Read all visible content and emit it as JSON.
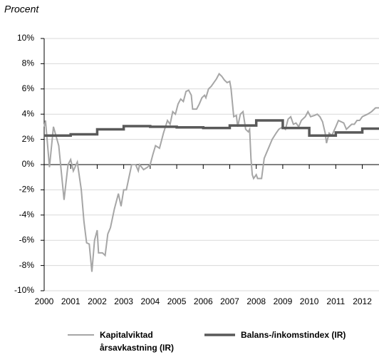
{
  "chart_data": {
    "type": "line",
    "y_axis_label": "Procent",
    "xlim": [
      2000,
      2012.63
    ],
    "ylim": [
      -10,
      10
    ],
    "xticks": [
      2000,
      2001,
      2002,
      2003,
      2004,
      2005,
      2006,
      2007,
      2008,
      2009,
      2010,
      2011,
      2012
    ],
    "yticks": [
      {
        "value": 10,
        "label": "10%"
      },
      {
        "value": 8,
        "label": "8%"
      },
      {
        "value": 6,
        "label": "6%"
      },
      {
        "value": 4,
        "label": "4%"
      },
      {
        "value": 2,
        "label": "2%"
      },
      {
        "value": 0,
        "label": "0%"
      },
      {
        "value": -2,
        "label": "-2%"
      },
      {
        "value": -4,
        "label": "-4%"
      },
      {
        "value": -6,
        "label": "-6%"
      },
      {
        "value": -8,
        "label": "-8%"
      },
      {
        "value": -10,
        "label": "-10%"
      }
    ],
    "grid": true,
    "series": [
      {
        "name": "Kapitalviktad årsavkastning (IR)",
        "color": "#a6a6a6",
        "x": [
          2000,
          2000.05,
          2000.2,
          2000.35,
          2000.55,
          2000.75,
          2000.9,
          2001,
          2001.1,
          2001.25,
          2001.4,
          2001.5,
          2001.6,
          2001.7,
          2001.8,
          2001.9,
          2002,
          2002.05,
          2002.2,
          2002.3,
          2002.4,
          2002.5,
          2002.65,
          2002.8,
          2002.9,
          2003,
          2003.1,
          2003.2,
          2003.3,
          2003.45,
          2003.55,
          2003.6,
          2003.75,
          2003.9,
          2004,
          2004.1,
          2004.2,
          2004.35,
          2004.5,
          2004.65,
          2004.75,
          2004.85,
          2004.95,
          2005.05,
          2005.15,
          2005.25,
          2005.35,
          2005.45,
          2005.55,
          2005.6,
          2005.75,
          2005.85,
          2005.95,
          2006.05,
          2006.1,
          2006.2,
          2006.3,
          2006.4,
          2006.5,
          2006.6,
          2006.7,
          2006.8,
          2006.9,
          2007,
          2007.05,
          2007.15,
          2007.25,
          2007.3,
          2007.4,
          2007.5,
          2007.6,
          2007.7,
          2007.75,
          2007.8,
          2007.85,
          2007.9,
          2008,
          2008.05,
          2008.2,
          2008.3,
          2008.4,
          2008.5,
          2008.6,
          2008.75,
          2008.85,
          2009,
          2009.1,
          2009.2,
          2009.3,
          2009.4,
          2009.5,
          2009.6,
          2009.7,
          2009.85,
          2009.95,
          2010.05,
          2010.2,
          2010.3,
          2010.4,
          2010.5,
          2010.6,
          2010.65,
          2010.75,
          2010.85,
          2011,
          2011.1,
          2011.2,
          2011.3,
          2011.4,
          2011.5,
          2011.6,
          2011.7,
          2011.8,
          2011.9,
          2012,
          2012.2,
          2012.35,
          2012.5,
          2012.63
        ],
        "values": [
          3.0,
          3.5,
          -0.2,
          3.0,
          1.5,
          -2.8,
          0.0,
          0.4,
          -0.5,
          0.2,
          -2.0,
          -4.5,
          -6.2,
          -6.3,
          -8.5,
          -6.0,
          -5.2,
          -7.0,
          -7.0,
          -7.2,
          -5.5,
          -5.0,
          -3.5,
          -2.3,
          -3.3,
          -2.0,
          -2.0,
          -1.0,
          0.0,
          0.0,
          -0.5,
          0.0,
          -0.4,
          -0.2,
          0.0,
          0.8,
          1.5,
          1.3,
          2.5,
          3.5,
          3.2,
          4.2,
          4.0,
          4.8,
          5.2,
          5.0,
          5.8,
          5.9,
          5.5,
          4.4,
          4.4,
          4.8,
          5.3,
          5.5,
          5.3,
          6.0,
          6.2,
          6.5,
          6.8,
          7.2,
          7.0,
          6.7,
          6.5,
          6.6,
          6.0,
          3.8,
          3.9,
          3.0,
          4.0,
          4.2,
          2.8,
          2.6,
          2.8,
          0.5,
          -0.8,
          -1.1,
          -0.8,
          -1.1,
          -1.1,
          0.5,
          1.0,
          1.5,
          2.0,
          2.5,
          2.8,
          3.0,
          2.8,
          3.6,
          3.8,
          3.2,
          3.3,
          3.0,
          3.5,
          3.8,
          4.2,
          3.8,
          3.9,
          4.0,
          3.8,
          3.4,
          2.5,
          1.7,
          2.5,
          2.3,
          3.0,
          3.5,
          3.4,
          3.3,
          2.8,
          3.0,
          3.2,
          3.2,
          3.5,
          3.5,
          3.8,
          4.0,
          4.2,
          4.5,
          4.5
        ]
      },
      {
        "name": "Balans-/inkomstindex (IR)",
        "color": "#595959",
        "x": [
          2000,
          2001,
          2001,
          2002,
          2002,
          2003,
          2003,
          2004,
          2004,
          2005,
          2005,
          2006,
          2006,
          2007,
          2007,
          2008,
          2008,
          2009,
          2009,
          2010,
          2010,
          2011,
          2011,
          2012,
          2012,
          2012.63
        ],
        "values": [
          2.3,
          2.3,
          2.4,
          2.4,
          2.8,
          2.8,
          3.05,
          3.05,
          3.0,
          3.0,
          2.95,
          2.95,
          2.9,
          2.9,
          3.1,
          3.1,
          3.5,
          3.5,
          2.9,
          2.9,
          2.3,
          2.3,
          2.55,
          2.55,
          2.85,
          2.85
        ]
      }
    ]
  }
}
